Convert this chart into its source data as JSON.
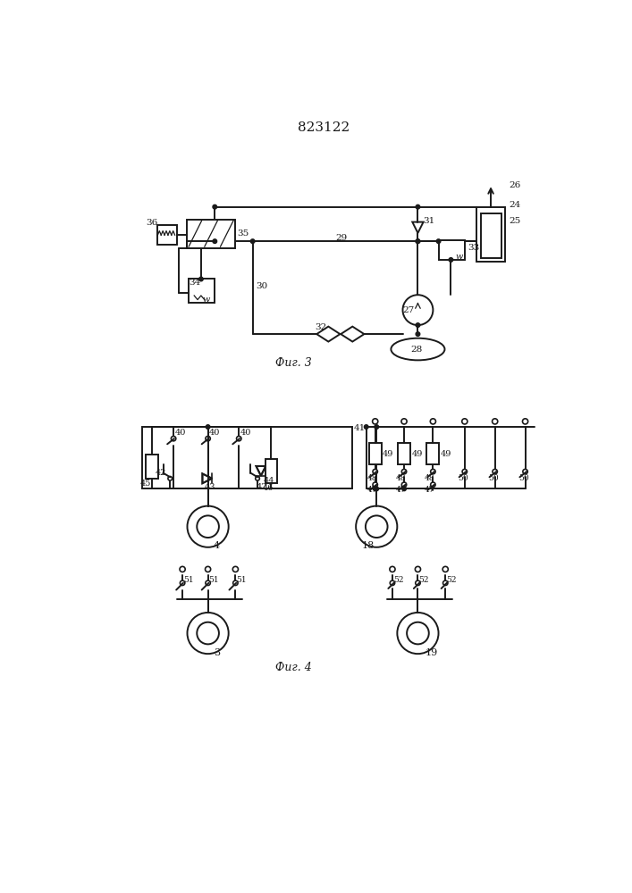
{
  "title": "823122",
  "fig3_label": "Фиг. 3",
  "fig4_label": "Фиг. 4",
  "bg_color": "#ffffff",
  "line_color": "#1a1a1a",
  "lw": 1.4
}
